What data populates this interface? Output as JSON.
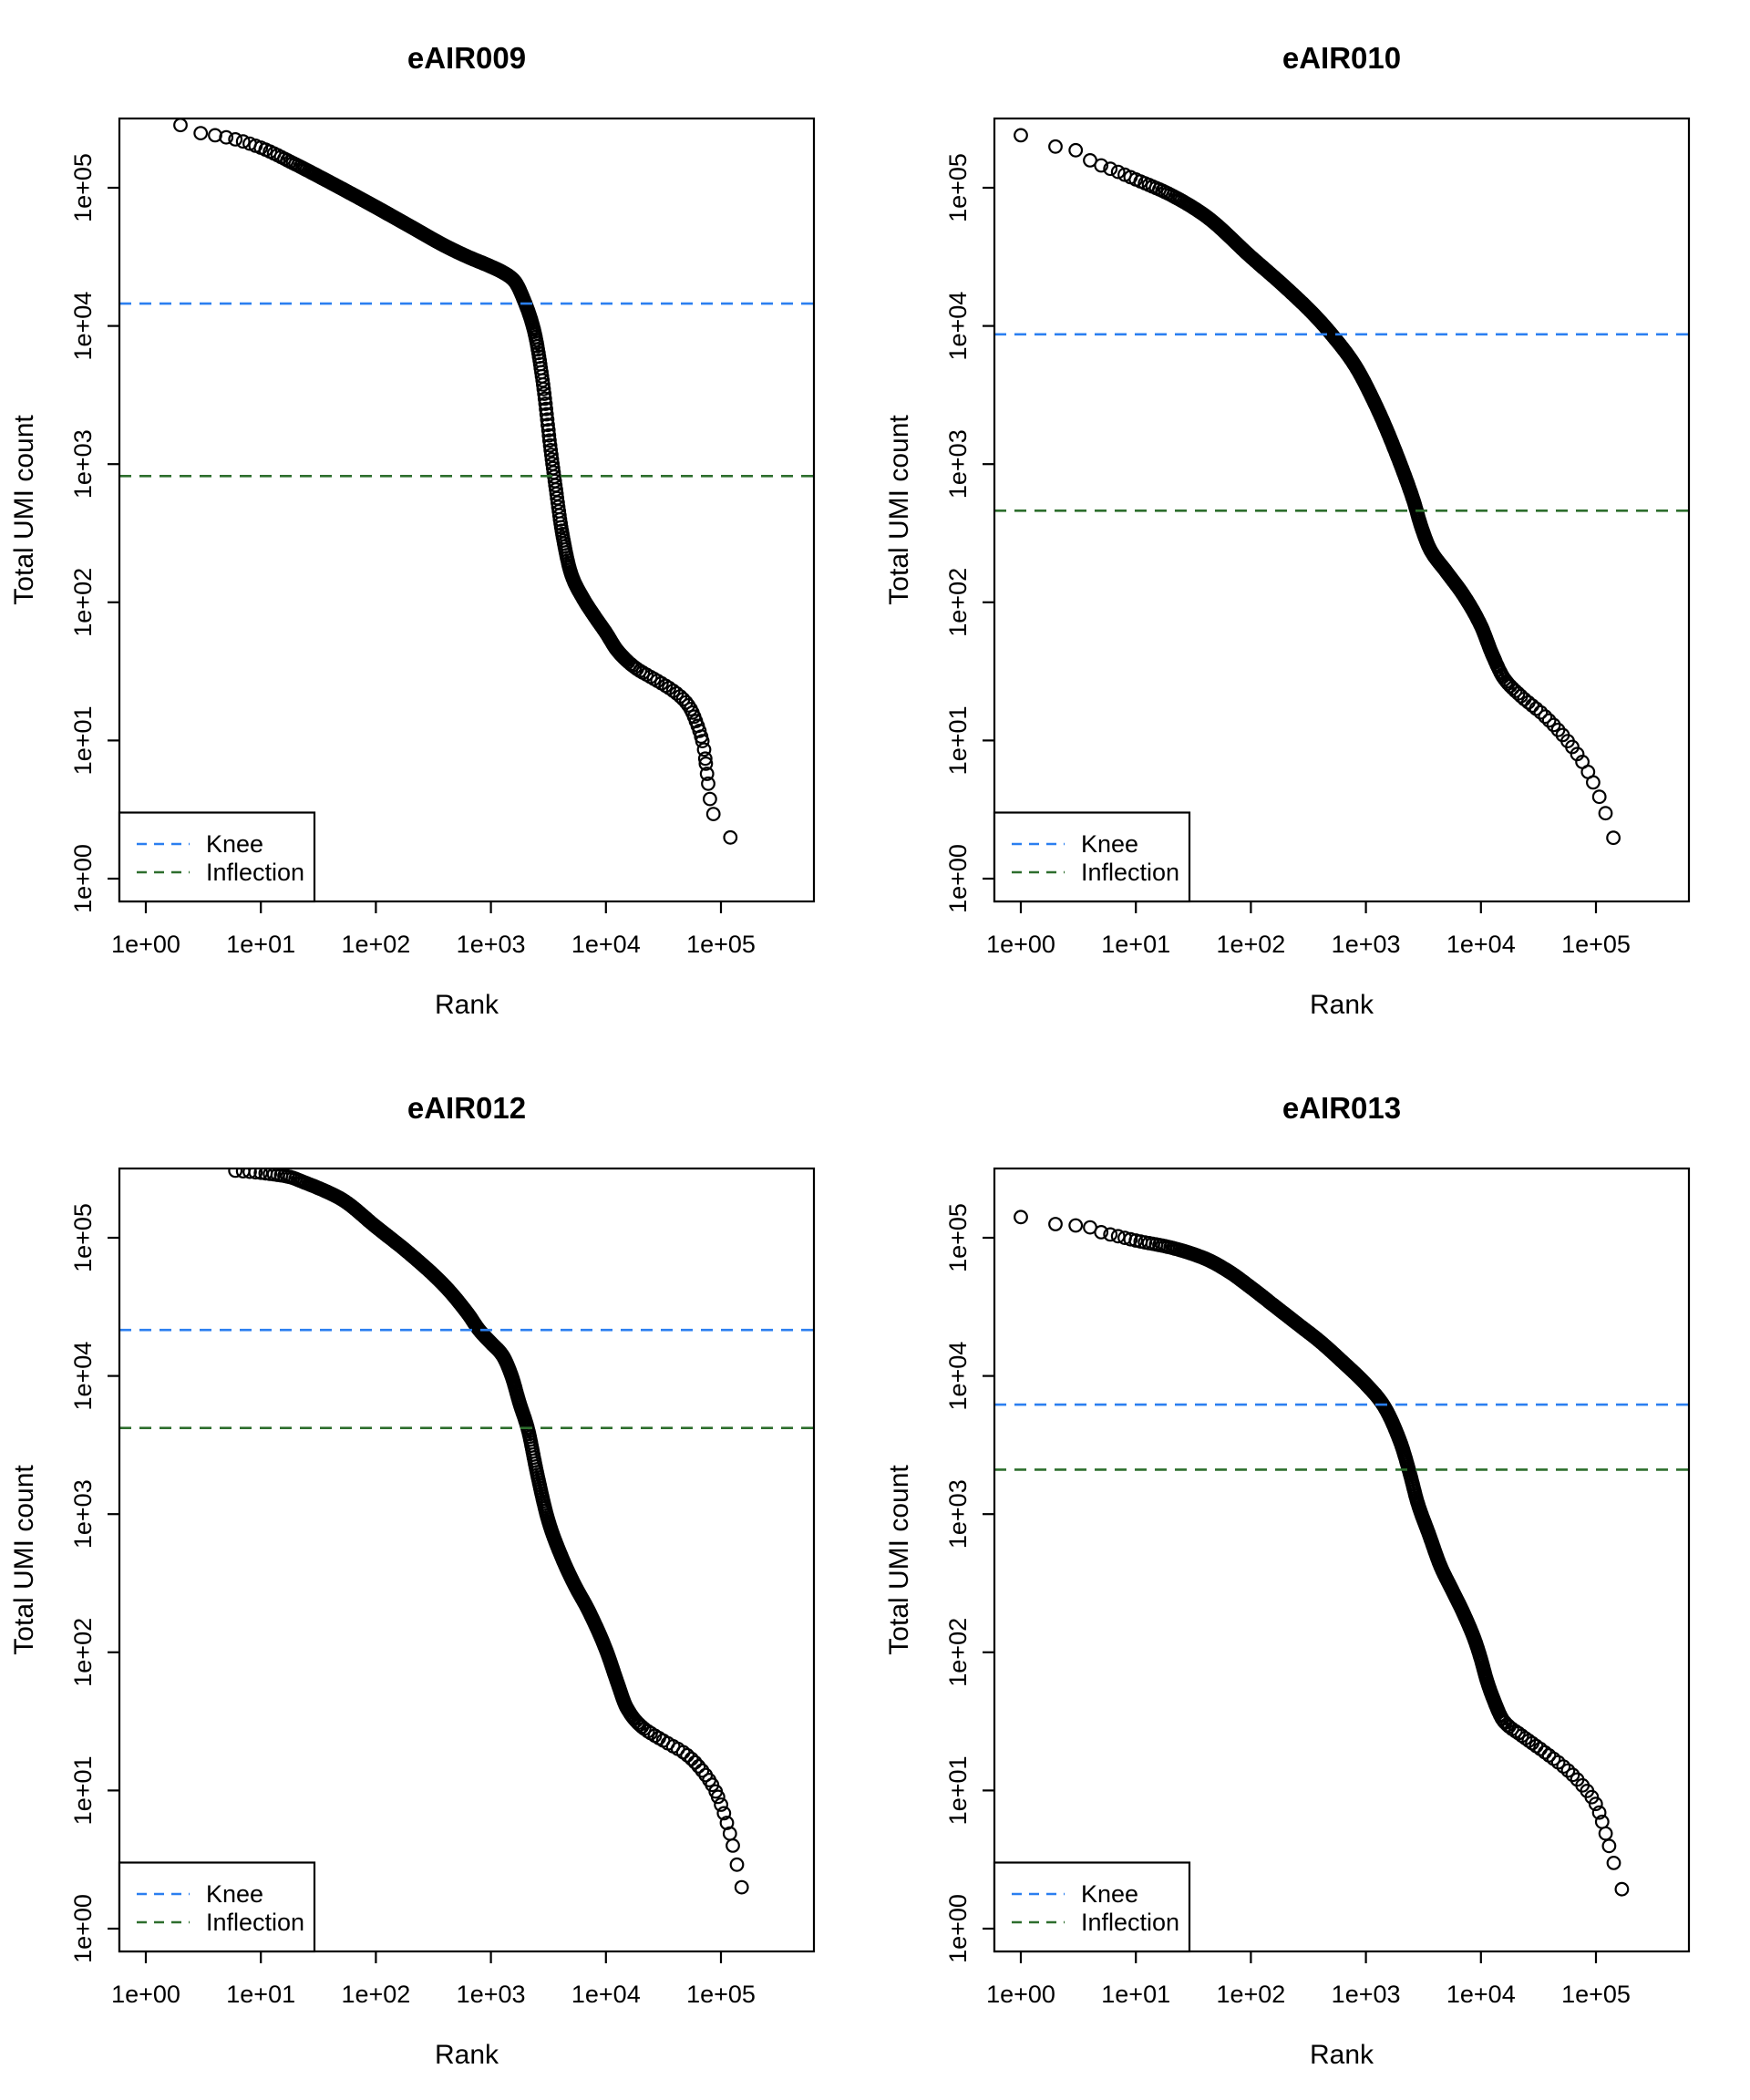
{
  "figure": {
    "layout": "2x2 grid of barcode rank plots",
    "background": "#ffffff",
    "colors": {
      "points": "#000000",
      "knee_line": "#2b7ff0",
      "inflection_line": "#2d6e2d",
      "axis": "#000000"
    }
  },
  "shared": {
    "xlabel": "Rank",
    "ylabel": "Total UMI count",
    "x_tick_labels": [
      "1e+00",
      "1e+01",
      "1e+02",
      "1e+03",
      "1e+04",
      "1e+05"
    ],
    "y_tick_labels": [
      "1e+00",
      "1e+01",
      "1e+02",
      "1e+03",
      "1e+04",
      "1e+05"
    ],
    "legend": {
      "items": [
        {
          "label": "Knee",
          "color": "#2b7ff0"
        },
        {
          "label": "Inflection",
          "color": "#2d6e2d"
        }
      ],
      "position": "bottom-left"
    }
  },
  "chart_data": [
    {
      "type": "scatter",
      "title": "eAIR009",
      "xlabel": "Rank",
      "ylabel": "Total UMI count",
      "x_scale": "log10",
      "y_scale": "log10",
      "xlim_log10": [
        -0.23,
        5.81
      ],
      "ylim_log10": [
        -0.165,
        5.5
      ],
      "knee": 14500,
      "inflection": 820,
      "max_rank": 214000,
      "curve_log10_anchors": [
        [
          0.285,
          5.46
        ],
        [
          0.45,
          5.4
        ],
        [
          0.6,
          5.38
        ],
        [
          0.78,
          5.35
        ],
        [
          1.0,
          5.29
        ],
        [
          1.3,
          5.17
        ],
        [
          1.6,
          5.04
        ],
        [
          2.0,
          4.86
        ],
        [
          2.3,
          4.72
        ],
        [
          2.6,
          4.58
        ],
        [
          2.8,
          4.5
        ],
        [
          3.0,
          4.43
        ],
        [
          3.1,
          4.39
        ],
        [
          3.2,
          4.33
        ],
        [
          3.3,
          4.16
        ],
        [
          3.38,
          3.95
        ],
        [
          3.45,
          3.6
        ],
        [
          3.52,
          3.1
        ],
        [
          3.56,
          2.85
        ],
        [
          3.62,
          2.5
        ],
        [
          3.7,
          2.2
        ],
        [
          3.8,
          2.03
        ],
        [
          3.9,
          1.9
        ],
        [
          4.0,
          1.78
        ],
        [
          4.1,
          1.65
        ],
        [
          4.25,
          1.53
        ],
        [
          4.45,
          1.43
        ],
        [
          4.6,
          1.35
        ],
        [
          4.72,
          1.25
        ],
        [
          4.8,
          1.1
        ],
        [
          4.85,
          0.95
        ],
        [
          4.88,
          0.75
        ],
        [
          4.92,
          0.5
        ],
        [
          5.08,
          0.3
        ],
        [
          5.33,
          0.0
        ]
      ]
    },
    {
      "type": "scatter",
      "title": "eAIR010",
      "xlabel": "Rank",
      "ylabel": "Total UMI count",
      "x_scale": "log10",
      "y_scale": "log10",
      "xlim_log10": [
        -0.23,
        5.81
      ],
      "ylim_log10": [
        -0.165,
        5.5
      ],
      "knee": 8700,
      "inflection": 460,
      "max_rank": 166000,
      "curve_log10_anchors": [
        [
          0.0,
          5.38
        ],
        [
          0.29,
          5.3
        ],
        [
          0.45,
          5.28
        ],
        [
          0.62,
          5.19
        ],
        [
          0.8,
          5.13
        ],
        [
          1.0,
          5.06
        ],
        [
          1.3,
          4.95
        ],
        [
          1.6,
          4.8
        ],
        [
          2.0,
          4.5
        ],
        [
          2.3,
          4.28
        ],
        [
          2.55,
          4.08
        ],
        [
          2.7,
          3.94
        ],
        [
          2.9,
          3.72
        ],
        [
          3.1,
          3.4
        ],
        [
          3.3,
          3.0
        ],
        [
          3.42,
          2.72
        ],
        [
          3.48,
          2.55
        ],
        [
          3.56,
          2.38
        ],
        [
          3.7,
          2.22
        ],
        [
          3.85,
          2.05
        ],
        [
          4.0,
          1.83
        ],
        [
          4.1,
          1.62
        ],
        [
          4.2,
          1.45
        ],
        [
          4.35,
          1.32
        ],
        [
          4.55,
          1.18
        ],
        [
          4.75,
          1.0
        ],
        [
          4.9,
          0.82
        ],
        [
          5.0,
          0.65
        ],
        [
          5.08,
          0.48
        ],
        [
          5.15,
          0.3
        ],
        [
          5.22,
          0.0
        ]
      ]
    },
    {
      "type": "scatter",
      "title": "eAIR012",
      "xlabel": "Rank",
      "ylabel": "Total UMI count",
      "x_scale": "log10",
      "y_scale": "log10",
      "xlim_log10": [
        -0.23,
        5.81
      ],
      "ylim_log10": [
        -0.165,
        5.5
      ],
      "knee": 21500,
      "inflection": 4200,
      "max_rank": 234000,
      "curve_log10_anchors": [
        [
          0.71,
          5.49
        ],
        [
          1.0,
          5.47
        ],
        [
          1.25,
          5.44
        ],
        [
          1.38,
          5.4
        ],
        [
          1.5,
          5.36
        ],
        [
          1.7,
          5.28
        ],
        [
          2.0,
          5.08
        ],
        [
          2.3,
          4.88
        ],
        [
          2.6,
          4.65
        ],
        [
          2.8,
          4.45
        ],
        [
          2.9,
          4.33
        ],
        [
          3.0,
          4.24
        ],
        [
          3.1,
          4.15
        ],
        [
          3.18,
          4.0
        ],
        [
          3.25,
          3.8
        ],
        [
          3.32,
          3.62
        ],
        [
          3.4,
          3.3
        ],
        [
          3.5,
          2.95
        ],
        [
          3.6,
          2.72
        ],
        [
          3.72,
          2.5
        ],
        [
          3.85,
          2.3
        ],
        [
          4.0,
          2.02
        ],
        [
          4.1,
          1.78
        ],
        [
          4.18,
          1.6
        ],
        [
          4.3,
          1.47
        ],
        [
          4.5,
          1.36
        ],
        [
          4.7,
          1.26
        ],
        [
          4.85,
          1.13
        ],
        [
          4.95,
          1.0
        ],
        [
          5.02,
          0.85
        ],
        [
          5.08,
          0.68
        ],
        [
          5.13,
          0.5
        ],
        [
          5.18,
          0.3
        ],
        [
          5.37,
          0.0
        ]
      ]
    },
    {
      "type": "scatter",
      "title": "eAIR013",
      "xlabel": "Rank",
      "ylabel": "Total UMI count",
      "x_scale": "log10",
      "y_scale": "log10",
      "xlim_log10": [
        -0.23,
        5.81
      ],
      "ylim_log10": [
        -0.165,
        5.5
      ],
      "knee": 6200,
      "inflection": 2100,
      "max_rank": 200000,
      "curve_log10_anchors": [
        [
          0.0,
          5.15
        ],
        [
          0.29,
          5.1
        ],
        [
          0.46,
          5.09
        ],
        [
          0.58,
          5.08
        ],
        [
          0.7,
          5.04
        ],
        [
          0.85,
          5.01
        ],
        [
          1.0,
          4.98
        ],
        [
          1.3,
          4.93
        ],
        [
          1.6,
          4.85
        ],
        [
          1.8,
          4.76
        ],
        [
          2.0,
          4.64
        ],
        [
          2.2,
          4.51
        ],
        [
          2.4,
          4.38
        ],
        [
          2.6,
          4.25
        ],
        [
          2.8,
          4.1
        ],
        [
          3.0,
          3.94
        ],
        [
          3.15,
          3.79
        ],
        [
          3.3,
          3.52
        ],
        [
          3.38,
          3.3
        ],
        [
          3.45,
          3.08
        ],
        [
          3.55,
          2.85
        ],
        [
          3.65,
          2.62
        ],
        [
          3.75,
          2.45
        ],
        [
          3.85,
          2.28
        ],
        [
          3.95,
          2.08
        ],
        [
          4.0,
          1.95
        ],
        [
          4.05,
          1.8
        ],
        [
          4.1,
          1.68
        ],
        [
          4.2,
          1.5
        ],
        [
          4.35,
          1.4
        ],
        [
          4.55,
          1.28
        ],
        [
          4.75,
          1.15
        ],
        [
          4.9,
          1.02
        ],
        [
          5.0,
          0.9
        ],
        [
          5.08,
          0.7
        ],
        [
          5.13,
          0.55
        ],
        [
          5.18,
          0.4
        ],
        [
          5.22,
          0.3
        ],
        [
          5.3,
          0.0
        ]
      ]
    }
  ]
}
